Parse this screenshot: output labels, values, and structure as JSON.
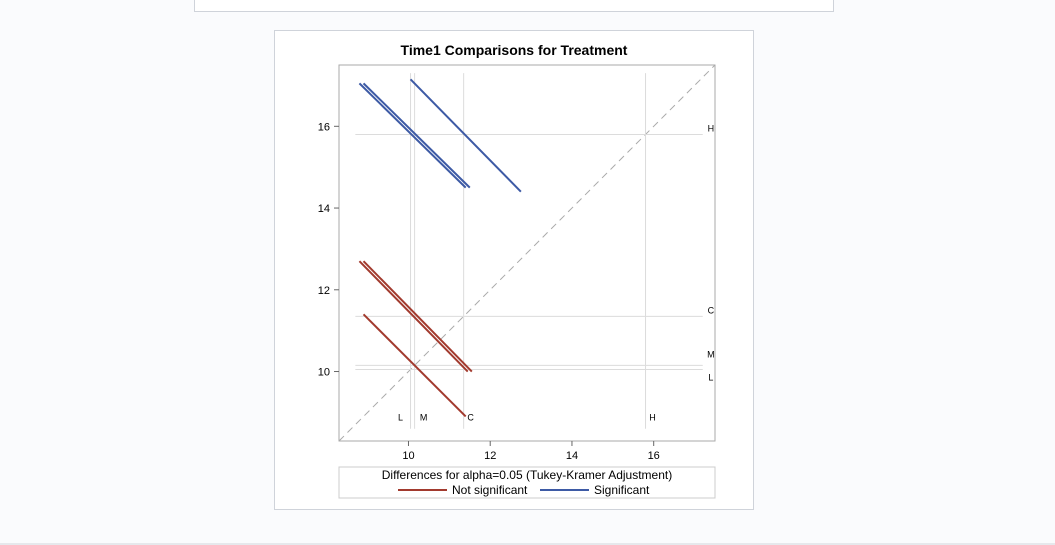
{
  "chart_data": {
    "type": "line",
    "title": "Time1 Comparisons for Treatment",
    "xlabel": "",
    "ylabel": "",
    "xlim": [
      8.3,
      17.5
    ],
    "ylim": [
      8.3,
      17.5
    ],
    "x_ticks": [
      10,
      12,
      14,
      16
    ],
    "y_ticks": [
      10,
      12,
      14,
      16
    ],
    "grid": false,
    "reference_diagonal": true,
    "levels": [
      {
        "name": "L",
        "mean": 10.05
      },
      {
        "name": "M",
        "mean": 10.15
      },
      {
        "name": "C",
        "mean": 11.35
      },
      {
        "name": "H",
        "mean": 15.8
      }
    ],
    "segments": [
      {
        "pair": "H-L",
        "significant": true,
        "x": [
          8.8,
          11.4
        ],
        "y": [
          17.05,
          14.5
        ]
      },
      {
        "pair": "H-M",
        "significant": true,
        "x": [
          8.9,
          11.5
        ],
        "y": [
          17.05,
          14.5
        ]
      },
      {
        "pair": "H-C",
        "significant": true,
        "x": [
          10.05,
          12.75
        ],
        "y": [
          17.15,
          14.4
        ]
      },
      {
        "pair": "C-L",
        "significant": false,
        "x": [
          8.8,
          11.45
        ],
        "y": [
          12.7,
          10.0
        ]
      },
      {
        "pair": "C-M",
        "significant": false,
        "x": [
          8.9,
          11.55
        ],
        "y": [
          12.7,
          10.0
        ]
      },
      {
        "pair": "M-L",
        "significant": false,
        "x": [
          8.9,
          11.4
        ],
        "y": [
          11.4,
          8.9
        ]
      }
    ],
    "legend": {
      "title": "Differences for alpha=0.05 (Tukey-Kramer Adjustment)",
      "placement": "bottom",
      "entries": [
        {
          "label": "Not significant",
          "color": "#a23a2e"
        },
        {
          "label": "Significant",
          "color": "#3d5aa5"
        }
      ]
    },
    "colors": {
      "not_significant": "#a23a2e",
      "significant": "#3d5aa5",
      "reference": "#bbbbbb",
      "frame": "#aaaaaa"
    }
  }
}
